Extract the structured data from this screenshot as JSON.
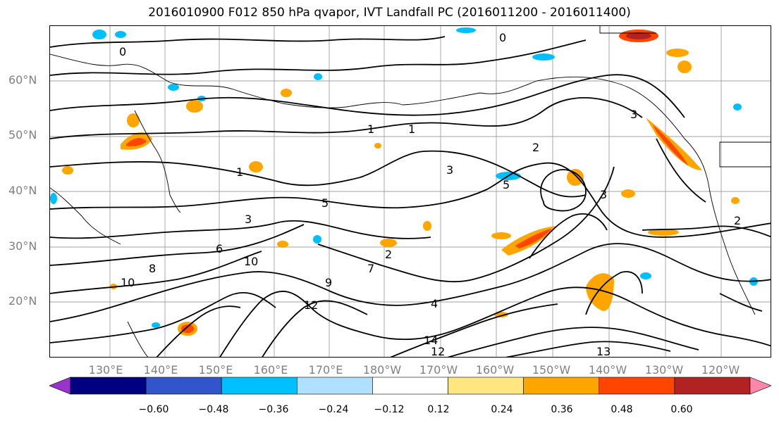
{
  "title": "2016010900 F012 850 hPa qvapor, IVT Landfall PC (2016011200 - 2016011400)",
  "lat_labels": [
    "60°N",
    "50°N",
    "40°N",
    "30°N",
    "20°N"
  ],
  "lon_labels": [
    "130°E",
    "140°E",
    "150°E",
    "160°E",
    "170°E",
    "180°W",
    "170°W",
    "160°W",
    "150°W",
    "140°W",
    "130°W",
    "120°W"
  ],
  "colorbar": {
    "tick_labels": [
      "−0.60",
      "−0.48",
      "−0.36",
      "−0.24",
      "−0.12",
      "0.12",
      "0.24",
      "0.36",
      "0.48",
      "0.60"
    ],
    "colors": [
      "#9933cc",
      "#000080",
      "#3355cc",
      "#00bfff",
      "#b0e0ff",
      "#ffffff",
      "#ffe680",
      "#ffa500",
      "#ff4500",
      "#b22222",
      "#ff88aa"
    ]
  },
  "contour_labels": [
    "0",
    "0",
    "1",
    "1",
    "1",
    "2",
    "2",
    "2",
    "3",
    "3",
    "3",
    "3",
    "4",
    "5",
    "5",
    "6",
    "7",
    "8",
    "9",
    "10",
    "10",
    "12",
    "12",
    "13",
    "14"
  ],
  "colors": {
    "contour": "#000000",
    "coast": "#000000",
    "grid": "#a0a0a0",
    "axis_labels": "#808080"
  }
}
